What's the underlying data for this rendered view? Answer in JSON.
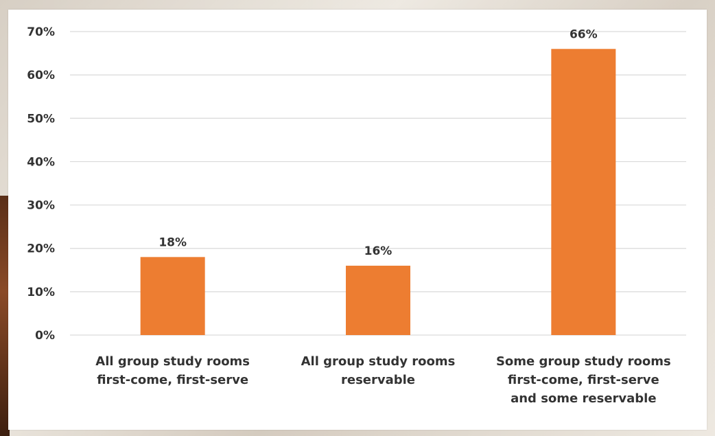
{
  "chart_data": {
    "type": "bar",
    "categories": [
      [
        "All group study rooms",
        "first-come, first-serve"
      ],
      [
        "All group study rooms",
        "reservable"
      ],
      [
        "Some group study rooms",
        "first-come, first-serve",
        "and some reservable"
      ]
    ],
    "values": [
      18,
      16,
      66
    ],
    "data_labels": [
      "18%",
      "16%",
      "66%"
    ],
    "title": "",
    "xlabel": "",
    "ylabel": "",
    "ylim": [
      0,
      70
    ],
    "yticks": [
      "0%",
      "10%",
      "20%",
      "30%",
      "40%",
      "50%",
      "60%",
      "70%"
    ],
    "grid": true,
    "legend": "none",
    "bar_color": "#ED7D31",
    "gridline_color": "#D9D9D9"
  }
}
